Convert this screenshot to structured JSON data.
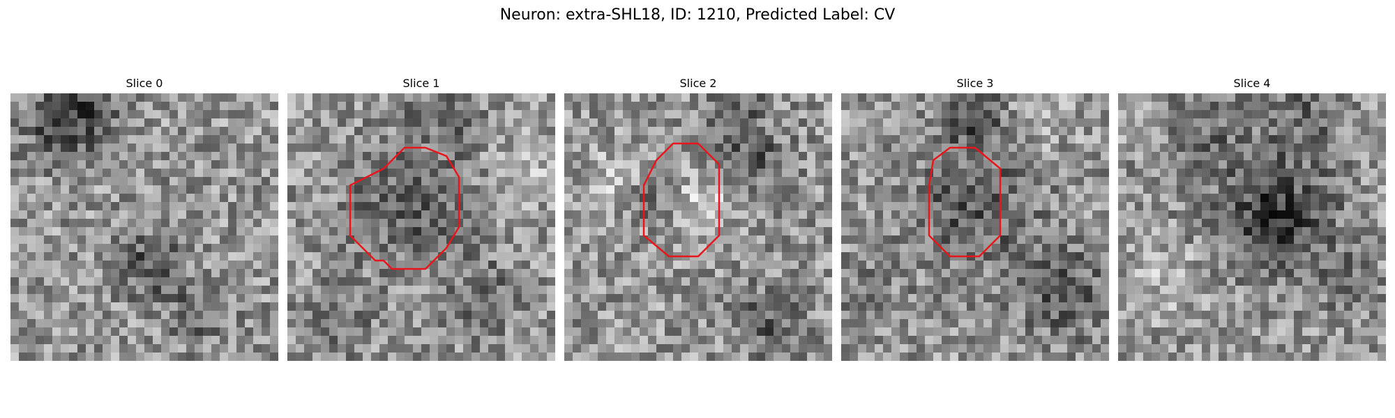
{
  "figure": {
    "title": "Neuron: extra-SHL18, ID: 1210, Predicted Label: CV"
  },
  "colors": {
    "roi": "#e8161b",
    "colormap": "gray"
  },
  "slices": [
    {
      "title": "Slice 0",
      "roi_present": false
    },
    {
      "title": "Slice 1",
      "roi_present": true
    },
    {
      "title": "Slice 2",
      "roi_present": true
    },
    {
      "title": "Slice 3",
      "roi_present": true
    },
    {
      "title": "Slice 4",
      "roi_present": false
    }
  ]
}
